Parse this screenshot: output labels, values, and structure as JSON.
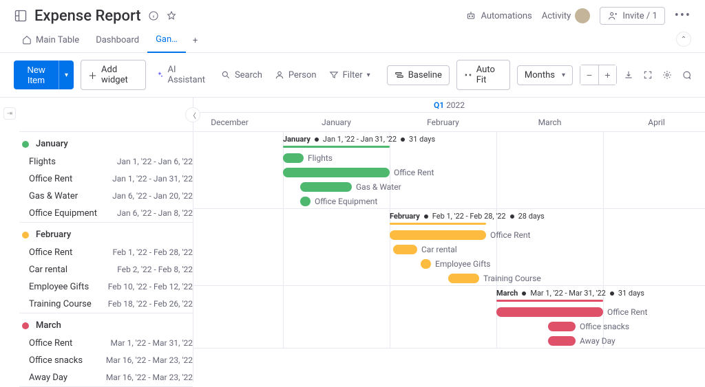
{
  "header": {
    "title": "Expense Report",
    "automations": "Automations",
    "activity": "Activity",
    "invite": "Invite / 1"
  },
  "tabs": {
    "items": [
      {
        "label": "Main Table",
        "active": false
      },
      {
        "label": "Dashboard",
        "active": false
      },
      {
        "label": "Gan…",
        "active": true
      }
    ]
  },
  "toolbar": {
    "newItem": "New Item",
    "addWidget": "Add widget",
    "aiAssistant": "AI Assistant",
    "search": "Search",
    "person": "Person",
    "filter": "Filter",
    "baseline": "Baseline",
    "autoFit": "Auto Fit",
    "timescale": "Months"
  },
  "timeline": {
    "quarterLabelPrefix": "Q1",
    "quarterLabelYear": "2022",
    "monthWidth": 155,
    "startOffset": -25,
    "months": [
      "December",
      "January",
      "February",
      "March",
      "April"
    ],
    "monthStarts": {
      "December": -25,
      "January": 130,
      "February": 285,
      "March": 440,
      "April": 595
    },
    "pxPerDay": 5
  },
  "colors": {
    "january": "#4eb86e",
    "february": "#fdbc3f",
    "march": "#df5069",
    "gridline": "#e6e9ef"
  },
  "groups": [
    {
      "key": "january",
      "name": "January",
      "color": "#4eb86e",
      "summary": {
        "label": "January",
        "range": "Jan 1, '22 - Jan 31, '22",
        "days": "31 days",
        "startMonth": "January",
        "startDay": 1,
        "endMonth": "January",
        "endDay": 31
      },
      "tasks": [
        {
          "name": "Flights",
          "dateText": "Jan 1, '22 - Jan 6, '22",
          "startMonth": "January",
          "startDay": 1,
          "endMonth": "January",
          "endDay": 6
        },
        {
          "name": "Office Rent",
          "dateText": "Jan 1, '22 - Jan 31, '22",
          "startMonth": "January",
          "startDay": 1,
          "endMonth": "January",
          "endDay": 31
        },
        {
          "name": "Gas & Water",
          "dateText": "Jan 6, '22 - Jan 20, '22",
          "startMonth": "January",
          "startDay": 6,
          "endMonth": "January",
          "endDay": 20
        },
        {
          "name": "Office Equipment",
          "dateText": "Jan 6, '22 - Jan 8, '22",
          "startMonth": "January",
          "startDay": 6,
          "endMonth": "January",
          "endDay": 8
        }
      ]
    },
    {
      "key": "february",
      "name": "February",
      "color": "#fdbc3f",
      "summary": {
        "label": "February",
        "range": "Feb 1, '22 - Feb 28, '22",
        "days": "28 days",
        "startMonth": "February",
        "startDay": 1,
        "endMonth": "February",
        "endDay": 28
      },
      "tasks": [
        {
          "name": "Office Rent",
          "dateText": "Feb 1, '22 - Feb 28, '22",
          "startMonth": "February",
          "startDay": 1,
          "endMonth": "February",
          "endDay": 28
        },
        {
          "name": "Car rental",
          "dateText": "Feb 2, '22 - Feb 8, '22",
          "startMonth": "February",
          "startDay": 2,
          "endMonth": "February",
          "endDay": 8
        },
        {
          "name": "Employee Gifts",
          "dateText": "Feb 10, '22 - Feb 12, '22",
          "startMonth": "February",
          "startDay": 10,
          "endMonth": "February",
          "endDay": 12
        },
        {
          "name": "Training Course",
          "dateText": "Feb 18, '22 - Feb 26, '22",
          "startMonth": "February",
          "startDay": 18,
          "endMonth": "February",
          "endDay": 26
        }
      ]
    },
    {
      "key": "march",
      "name": "March",
      "color": "#df5069",
      "summary": {
        "label": "March",
        "range": "Mar 1, '22 - Mar 31, '22",
        "days": "31 days",
        "startMonth": "March",
        "startDay": 1,
        "endMonth": "March",
        "endDay": 31
      },
      "tasks": [
        {
          "name": "Office Rent",
          "dateText": "Mar 1, '22 - Mar 31, '22",
          "startMonth": "March",
          "startDay": 1,
          "endMonth": "March",
          "endDay": 31
        },
        {
          "name": "Office snacks",
          "dateText": "Mar 16, '22 - Mar 23, '22",
          "startMonth": "March",
          "startDay": 16,
          "endMonth": "March",
          "endDay": 23
        },
        {
          "name": "Away Day",
          "dateText": "Mar 16, '22 - Mar 23, '22",
          "startMonth": "March",
          "startDay": 16,
          "endMonth": "March",
          "endDay": 23
        }
      ]
    }
  ]
}
